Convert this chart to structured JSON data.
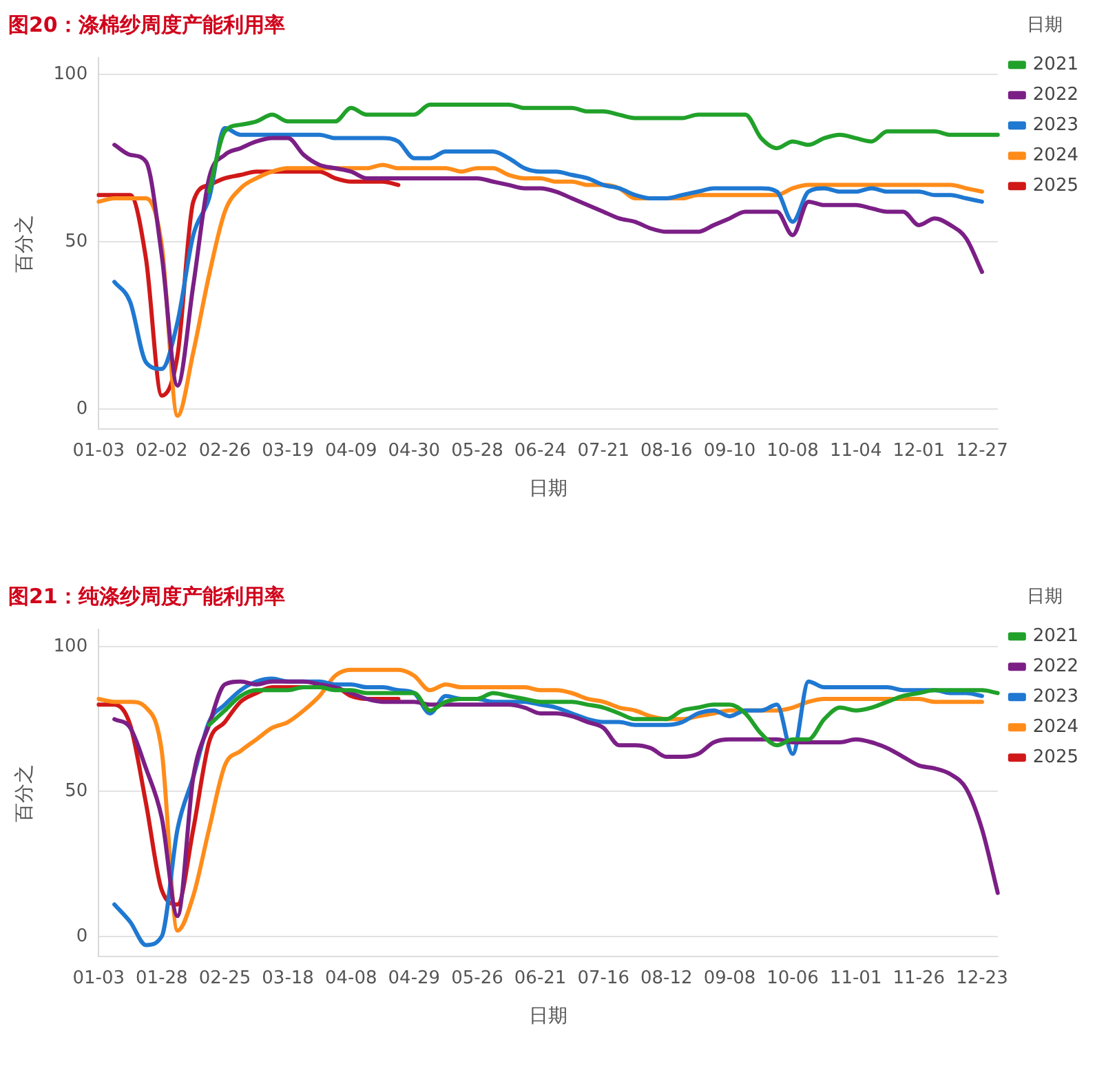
{
  "chart_data": [
    {
      "type": "line",
      "title": "图20：涤棉纱周度产能利用率",
      "xlabel": "日期",
      "ylabel": "百分之",
      "legend_title": "日期",
      "legend": "right",
      "grid": "y",
      "marker": "none",
      "line_style": "solid",
      "categories": [
        "01-03",
        null,
        null,
        null,
        "02-02",
        null,
        null,
        null,
        "02-26",
        null,
        null,
        null,
        "03-19",
        null,
        null,
        null,
        "04-09",
        null,
        null,
        null,
        "04-30",
        null,
        null,
        null,
        "05-28",
        null,
        null,
        null,
        "06-24",
        null,
        null,
        null,
        "07-21",
        null,
        null,
        null,
        "08-16",
        null,
        null,
        null,
        "09-10",
        null,
        null,
        null,
        "10-08",
        null,
        null,
        null,
        "11-04",
        null,
        null,
        null,
        "12-01",
        null,
        null,
        null,
        "12-27",
        null
      ],
      "ylim": [
        -6,
        105
      ],
      "yticks": [
        0,
        50,
        100
      ],
      "series": [
        {
          "name": "2021",
          "color": "#21a12a",
          "values": [
            null,
            null,
            null,
            null,
            null,
            null,
            null,
            65,
            83,
            85,
            86,
            88,
            86,
            86,
            86,
            86,
            90,
            88,
            88,
            88,
            88,
            91,
            91,
            91,
            91,
            91,
            91,
            90,
            90,
            90,
            90,
            89,
            89,
            88,
            87,
            87,
            87,
            87,
            88,
            88,
            88,
            88,
            81,
            78,
            80,
            79,
            81,
            82,
            81,
            80,
            83,
            83,
            83,
            83,
            82,
            82,
            82,
            82
          ]
        },
        {
          "name": "2022",
          "color": "#7b1f86",
          "values": [
            null,
            79,
            76,
            74,
            46,
            7,
            37,
            69,
            76,
            78,
            80,
            81,
            81,
            76,
            73,
            72,
            71,
            69,
            69,
            69,
            69,
            69,
            69,
            69,
            69,
            68,
            67,
            66,
            66,
            65,
            63,
            61,
            59,
            57,
            56,
            54,
            53,
            53,
            53,
            55,
            57,
            59,
            59,
            59,
            52,
            62,
            61,
            61,
            61,
            60,
            59,
            59,
            55,
            57,
            55,
            51,
            41,
            null
          ]
        },
        {
          "name": "2023",
          "color": "#1f78d1",
          "values": [
            null,
            38,
            32,
            14,
            12,
            26,
            52,
            63,
            84,
            82,
            82,
            82,
            82,
            82,
            82,
            81,
            81,
            81,
            81,
            80,
            75,
            75,
            77,
            77,
            77,
            77,
            75,
            72,
            71,
            71,
            70,
            69,
            67,
            66,
            64,
            63,
            63,
            64,
            65,
            66,
            66,
            66,
            66,
            65,
            56,
            65,
            66,
            65,
            65,
            66,
            65,
            65,
            65,
            64,
            64,
            63,
            62,
            null
          ]
        },
        {
          "name": "2024",
          "color": "#ff8c1a",
          "values": [
            62,
            63,
            63,
            63,
            49,
            -2,
            17,
            40,
            59,
            66,
            69,
            71,
            72,
            72,
            72,
            72,
            72,
            72,
            73,
            72,
            72,
            72,
            72,
            71,
            72,
            72,
            70,
            69,
            69,
            68,
            68,
            67,
            67,
            66,
            63,
            63,
            63,
            63,
            64,
            64,
            64,
            64,
            64,
            64,
            66,
            67,
            67,
            67,
            67,
            67,
            67,
            67,
            67,
            67,
            67,
            66,
            65,
            null
          ]
        },
        {
          "name": "2025",
          "color": "#d01818",
          "values": [
            64,
            64,
            64,
            45,
            4,
            16,
            62,
            67,
            69,
            70,
            71,
            71,
            71,
            71,
            71,
            69,
            68,
            68,
            68,
            67,
            null,
            null,
            null,
            null,
            null,
            null,
            null,
            null,
            null,
            null,
            null,
            null,
            null,
            null,
            null,
            null,
            null,
            null,
            null,
            null,
            null,
            null,
            null,
            null,
            null,
            null,
            null,
            null,
            null,
            null,
            null,
            null,
            null,
            null,
            null,
            null,
            null,
            null
          ]
        }
      ]
    },
    {
      "type": "line",
      "title": "图21：纯涤纱周度产能利用率",
      "xlabel": "日期",
      "ylabel": "百分之",
      "legend_title": "日期",
      "legend": "right",
      "grid": "y",
      "marker": "none",
      "line_style": "solid",
      "categories": [
        "01-03",
        null,
        null,
        null,
        "01-28",
        null,
        null,
        null,
        "02-25",
        null,
        null,
        null,
        "03-18",
        null,
        null,
        null,
        "04-08",
        null,
        null,
        null,
        "04-29",
        null,
        null,
        null,
        "05-26",
        null,
        null,
        null,
        "06-21",
        null,
        null,
        null,
        "07-16",
        null,
        null,
        null,
        "08-12",
        null,
        null,
        null,
        "09-08",
        null,
        null,
        null,
        "10-06",
        null,
        null,
        null,
        "11-01",
        null,
        null,
        null,
        "11-26",
        null,
        null,
        null,
        "12-23",
        null
      ],
      "ylim": [
        -7,
        106
      ],
      "yticks": [
        0,
        50,
        100
      ],
      "series": [
        {
          "name": "2021",
          "color": "#21a12a",
          "values": [
            null,
            null,
            null,
            null,
            null,
            null,
            null,
            73,
            78,
            83,
            85,
            85,
            85,
            86,
            86,
            85,
            85,
            84,
            84,
            84,
            84,
            78,
            81,
            82,
            82,
            84,
            83,
            82,
            81,
            81,
            81,
            80,
            79,
            77,
            75,
            75,
            75,
            78,
            79,
            80,
            80,
            77,
            70,
            66,
            68,
            68,
            75,
            79,
            78,
            79,
            81,
            83,
            84,
            85,
            85,
            85,
            85,
            84
          ]
        },
        {
          "name": "2022",
          "color": "#7b1f86",
          "values": [
            null,
            75,
            72,
            58,
            41,
            7,
            55,
            73,
            87,
            88,
            87,
            88,
            88,
            88,
            87,
            86,
            84,
            82,
            81,
            81,
            81,
            80,
            80,
            80,
            80,
            80,
            80,
            79,
            77,
            77,
            76,
            74,
            72,
            66,
            66,
            65,
            62,
            62,
            63,
            67,
            68,
            68,
            68,
            68,
            67,
            67,
            67,
            67,
            68,
            67,
            65,
            62,
            59,
            58,
            56,
            51,
            37,
            15
          ]
        },
        {
          "name": "2023",
          "color": "#1f78d1",
          "values": [
            null,
            11,
            5,
            -3,
            0,
            37,
            55,
            74,
            80,
            85,
            88,
            89,
            88,
            88,
            88,
            87,
            87,
            86,
            86,
            85,
            84,
            77,
            83,
            82,
            82,
            81,
            81,
            81,
            80,
            79,
            77,
            75,
            74,
            74,
            73,
            73,
            73,
            74,
            77,
            78,
            76,
            78,
            78,
            80,
            63,
            88,
            86,
            86,
            86,
            86,
            86,
            85,
            85,
            85,
            84,
            84,
            83,
            null
          ]
        },
        {
          "name": "2024",
          "color": "#ff8c1a",
          "values": [
            82,
            81,
            81,
            79,
            64,
            2,
            14,
            37,
            59,
            64,
            68,
            72,
            74,
            78,
            83,
            90,
            92,
            92,
            92,
            92,
            90,
            85,
            87,
            86,
            86,
            86,
            86,
            86,
            85,
            85,
            84,
            82,
            81,
            79,
            78,
            76,
            75,
            75,
            76,
            77,
            78,
            78,
            78,
            78,
            79,
            81,
            82,
            82,
            82,
            82,
            82,
            82,
            82,
            81,
            81,
            81,
            81,
            null
          ]
        },
        {
          "name": "2025",
          "color": "#d01818",
          "values": [
            80,
            80,
            73,
            46,
            16,
            11,
            37,
            67,
            74,
            81,
            84,
            86,
            86,
            86,
            86,
            86,
            83,
            82,
            82,
            82,
            null,
            null,
            null,
            null,
            null,
            null,
            null,
            null,
            null,
            null,
            null,
            null,
            null,
            null,
            null,
            null,
            null,
            null,
            null,
            null,
            null,
            null,
            null,
            null,
            null,
            null,
            null,
            null,
            null,
            null,
            null,
            null,
            null,
            null,
            null,
            null,
            null,
            null
          ]
        }
      ]
    }
  ]
}
